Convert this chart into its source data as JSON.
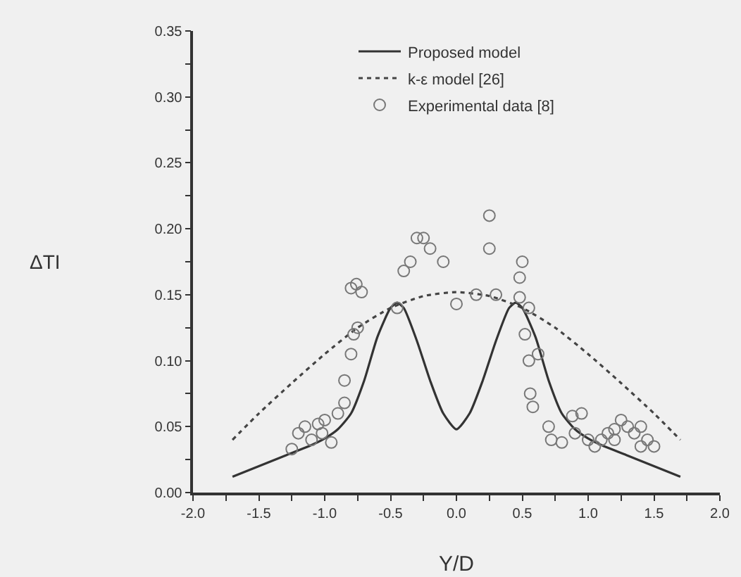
{
  "chart_data": {
    "type": "line",
    "xlabel": "Y/D",
    "ylabel": "ΔTI",
    "xlim": [
      -2,
      2
    ],
    "xticks": [
      {
        "value": -2,
        "label": "-2.0"
      },
      {
        "value": -1.75,
        "label": null
      },
      -1.5,
      {
        "value": -1.25,
        "label": null
      },
      {
        "value": -1,
        "label": "-1.0"
      },
      {
        "value": -0.75,
        "label": null
      },
      -0.5,
      {
        "value": -0.25,
        "label": null
      },
      {
        "value": 0,
        "label": "0.0"
      },
      {
        "value": 0.25,
        "label": null
      },
      0.5,
      {
        "value": 0.75,
        "label": null
      },
      {
        "value": 1,
        "label": "1.0"
      },
      {
        "value": 1.25,
        "label": null
      },
      1.5,
      {
        "value": 1.75,
        "label": null
      },
      {
        "value": 2,
        "label": "2.0"
      }
    ],
    "ylim": [
      0,
      0.35
    ],
    "yticks": [
      {
        "value": 0,
        "label": "0.00"
      },
      {
        "value": 0.025,
        "label": null
      },
      {
        "value": 0.05,
        "label": "0.05"
      },
      {
        "value": 0.075,
        "label": null
      },
      {
        "value": 0.1,
        "label": "0.10"
      },
      {
        "value": 0.125,
        "label": null
      },
      {
        "value": 0.15,
        "label": "0.15"
      },
      {
        "value": 0.175,
        "label": null
      },
      {
        "value": 0.2,
        "label": "0.20"
      },
      {
        "value": 0.225,
        "label": null
      },
      {
        "value": 0.25,
        "label": "0.25"
      },
      {
        "value": 0.275,
        "label": null
      },
      {
        "value": 0.3,
        "label": "0.30"
      },
      {
        "value": 0.325,
        "label": null
      },
      {
        "value": 0.35,
        "label": "0.35"
      }
    ],
    "grid": false,
    "legend": "top",
    "series": [
      {
        "name": "Proposed model",
        "line_style": "solid",
        "marker": "none",
        "color": "#333333",
        "x": [
          -1.7,
          -1.5,
          -1.3,
          -1.1,
          -1.0,
          -0.9,
          -0.8,
          -0.7,
          -0.6,
          -0.5,
          -0.45,
          -0.4,
          -0.3,
          -0.2,
          -0.1,
          0,
          0.1,
          0.2,
          0.3,
          0.4,
          0.45,
          0.5,
          0.6,
          0.7,
          0.8,
          0.9,
          1.0,
          1.1,
          1.3,
          1.5,
          1.7
        ],
        "values": [
          0.012,
          0.02,
          0.028,
          0.036,
          0.041,
          0.048,
          0.06,
          0.085,
          0.118,
          0.14,
          0.144,
          0.14,
          0.115,
          0.085,
          0.06,
          0.048,
          0.06,
          0.085,
          0.115,
          0.14,
          0.144,
          0.14,
          0.118,
          0.085,
          0.06,
          0.048,
          0.041,
          0.036,
          0.028,
          0.02,
          0.012
        ]
      },
      {
        "name": "k-ε model [26]",
        "line_style": "dotted",
        "marker": "none",
        "color": "#444444",
        "x": [
          -1.7,
          -1.5,
          -1.25,
          -1.0,
          -0.75,
          -0.5,
          -0.25,
          0,
          0.25,
          0.5,
          0.75,
          1.0,
          1.25,
          1.5,
          1.7
        ],
        "values": [
          0.04,
          0.06,
          0.083,
          0.105,
          0.125,
          0.14,
          0.149,
          0.152,
          0.149,
          0.14,
          0.125,
          0.105,
          0.083,
          0.06,
          0.04
        ]
      },
      {
        "name": "Experimental data [8]",
        "type": "scatter",
        "marker": "circle",
        "color": "#777777",
        "x": [
          -1.25,
          -1.2,
          -1.15,
          -1.1,
          -1.05,
          -1.0,
          -0.95,
          -1.02,
          -0.9,
          -0.85,
          -0.85,
          -0.8,
          -0.78,
          -0.75,
          -0.8,
          -0.76,
          -0.72,
          -0.45,
          -0.4,
          -0.35,
          -0.3,
          -0.25,
          -0.2,
          -0.1,
          0.0,
          0.15,
          0.25,
          0.25,
          0.3,
          0.5,
          0.48,
          0.48,
          0.55,
          0.52,
          0.55,
          0.62,
          0.56,
          0.58,
          0.7,
          0.72,
          0.8,
          0.88,
          0.95,
          0.9,
          1.0,
          1.05,
          1.1,
          1.15,
          1.2,
          1.25,
          1.3,
          1.35,
          1.4,
          1.45,
          1.5,
          1.4,
          1.2
        ],
        "values": [
          0.033,
          0.045,
          0.05,
          0.04,
          0.052,
          0.055,
          0.038,
          0.045,
          0.06,
          0.068,
          0.085,
          0.105,
          0.12,
          0.125,
          0.155,
          0.158,
          0.152,
          0.14,
          0.168,
          0.175,
          0.193,
          0.193,
          0.185,
          0.175,
          0.143,
          0.15,
          0.21,
          0.185,
          0.15,
          0.175,
          0.163,
          0.148,
          0.14,
          0.12,
          0.1,
          0.105,
          0.075,
          0.065,
          0.05,
          0.04,
          0.038,
          0.058,
          0.06,
          0.045,
          0.04,
          0.035,
          0.04,
          0.045,
          0.048,
          0.055,
          0.05,
          0.045,
          0.05,
          0.04,
          0.035,
          0.035,
          0.04
        ]
      }
    ]
  }
}
